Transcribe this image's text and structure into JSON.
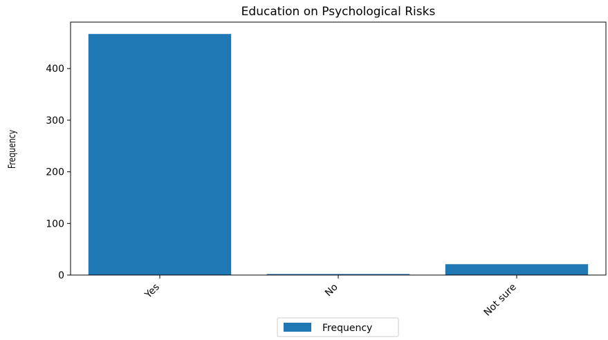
{
  "chart_data": {
    "type": "bar",
    "title": "Education on Psychological Risks",
    "xlabel": "",
    "ylabel": "Frequency",
    "categories": [
      "Yes",
      "No",
      "Not sure"
    ],
    "series": [
      {
        "name": "Frequency",
        "values": [
          467,
          2,
          21
        ]
      }
    ],
    "ylim": [
      0,
      490
    ],
    "yticks": [
      0,
      100,
      200,
      300,
      400
    ],
    "grid": false,
    "legend_position": "bottom-center",
    "colors": {
      "bar": "#1f77b4"
    }
  }
}
